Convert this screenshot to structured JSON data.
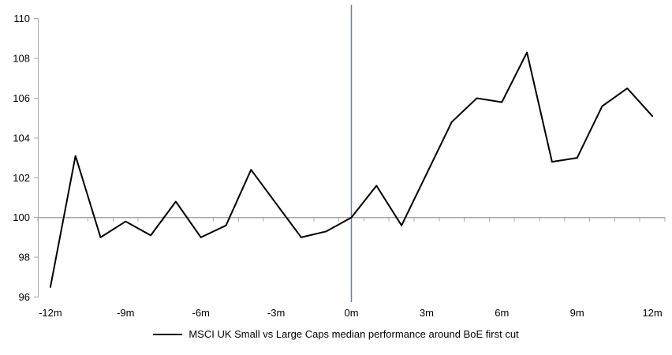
{
  "chart_data": {
    "type": "line",
    "title": "",
    "x": [
      -12,
      -11,
      -10,
      -9,
      -8,
      -7,
      -6,
      -5,
      -4,
      -3,
      -2,
      -1,
      0,
      1,
      2,
      3,
      4,
      5,
      6,
      7,
      8,
      9,
      10,
      11,
      12
    ],
    "series": [
      {
        "name": "MSCI UK Small vs Large Caps median performance around BoE first cut",
        "values": [
          96.5,
          103.1,
          99.0,
          99.8,
          99.1,
          100.8,
          99.0,
          99.6,
          102.4,
          100.7,
          99.0,
          99.3,
          100.0,
          101.6,
          99.6,
          102.2,
          104.8,
          106.0,
          105.8,
          108.3,
          102.8,
          103.0,
          105.6,
          106.5,
          105.1
        ]
      }
    ],
    "x_tick_labels": [
      {
        "value": -12,
        "label": "-12m"
      },
      {
        "value": -9,
        "label": "-9m"
      },
      {
        "value": -6,
        "label": "-6m"
      },
      {
        "value": -3,
        "label": "-3m"
      },
      {
        "value": 0,
        "label": "0m"
      },
      {
        "value": 3,
        "label": "3m"
      },
      {
        "value": 6,
        "label": "6m"
      },
      {
        "value": 9,
        "label": "9m"
      },
      {
        "value": 12,
        "label": "12m"
      }
    ],
    "y_ticks": [
      96,
      98,
      100,
      102,
      104,
      106,
      108,
      110
    ],
    "ylim": [
      96,
      110
    ],
    "xlim": [
      -12.5,
      12.5
    ],
    "baseline": {
      "value": 100
    },
    "event_line": {
      "x": 0
    },
    "grid": "baseline-only",
    "legend_position": "bottom",
    "colors": {
      "series": "#000000",
      "axis": "#a6a6a6",
      "baseline": "#a6a6a6",
      "event_line": "#4e87c3",
      "tick_label": "#000000"
    }
  }
}
